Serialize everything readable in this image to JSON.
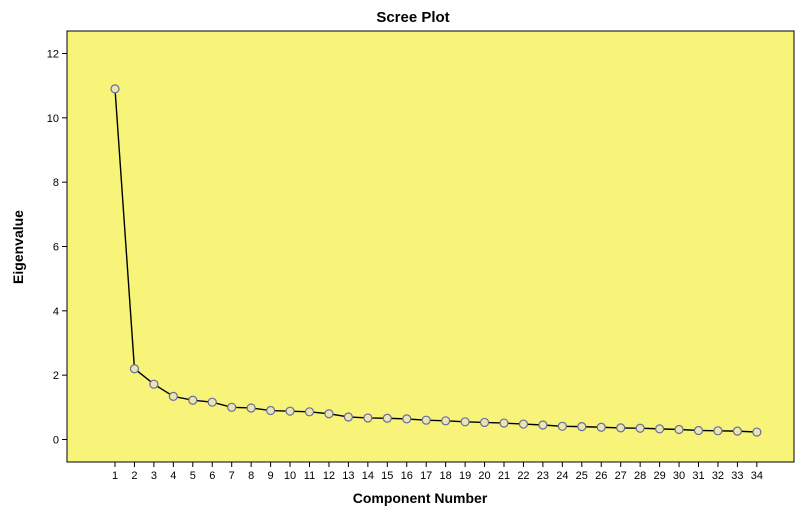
{
  "chart_data": {
    "type": "line",
    "title": "Scree Plot",
    "xlabel": "Component Number",
    "ylabel": "Eigenvalue",
    "x": [
      1,
      2,
      3,
      4,
      5,
      6,
      7,
      8,
      9,
      10,
      11,
      12,
      13,
      14,
      15,
      16,
      17,
      18,
      19,
      20,
      21,
      22,
      23,
      24,
      25,
      26,
      27,
      28,
      29,
      30,
      31,
      32,
      33,
      34
    ],
    "y": [
      10.9,
      2.2,
      1.72,
      1.34,
      1.22,
      1.16,
      1.0,
      0.98,
      0.9,
      0.88,
      0.86,
      0.8,
      0.7,
      0.67,
      0.66,
      0.64,
      0.6,
      0.58,
      0.55,
      0.53,
      0.51,
      0.48,
      0.45,
      0.41,
      0.4,
      0.38,
      0.36,
      0.35,
      0.33,
      0.31,
      0.28,
      0.27,
      0.26,
      0.23
    ],
    "ylim": [
      -0.7,
      12.7
    ],
    "yticks": [
      0,
      2,
      4,
      6,
      8,
      10,
      12
    ],
    "grid": false,
    "legend": "none",
    "colors": {
      "plot_background": "#f8f47a",
      "line": "#000000",
      "marker_stroke": "#6a6aa0",
      "marker_fill": "#e9e6b0"
    }
  }
}
